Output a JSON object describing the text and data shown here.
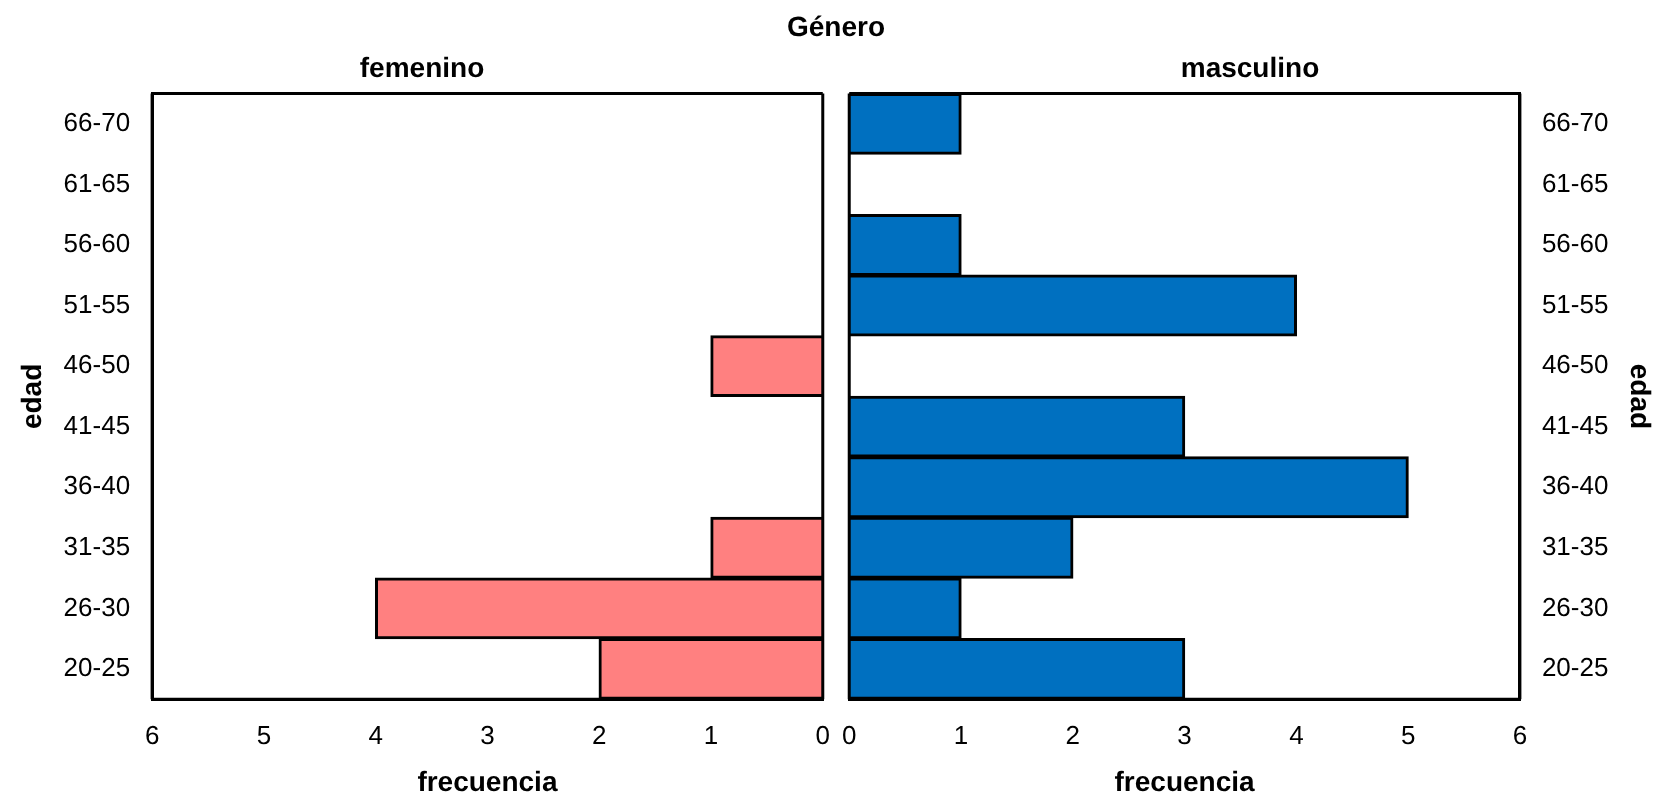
{
  "chart_data": [
    {
      "type": "bar",
      "orientation": "horizontal",
      "title": "femenino",
      "xlabel": "frecuencia",
      "ylabel": "edad",
      "annotations": [
        "Género"
      ],
      "categories": [
        "66-70",
        "61-65",
        "56-60",
        "51-55",
        "46-50",
        "41-45",
        "36-40",
        "31-35",
        "26-30",
        "20-25"
      ],
      "values": [
        0,
        0,
        0,
        0,
        1,
        0,
        0,
        1,
        4,
        2
      ],
      "color": "#ff8080",
      "xlim": [
        6,
        0
      ],
      "xticks": [
        6,
        5,
        4,
        3,
        2,
        1,
        0
      ],
      "grid": false,
      "legend": false
    },
    {
      "type": "bar",
      "orientation": "horizontal",
      "title": "masculino",
      "xlabel": "frecuencia",
      "ylabel": "edad",
      "categories": [
        "66-70",
        "61-65",
        "56-60",
        "51-55",
        "46-50",
        "41-45",
        "36-40",
        "31-35",
        "26-30",
        "20-25"
      ],
      "values": [
        1,
        0,
        1,
        4,
        0,
        3,
        5,
        2,
        1,
        3
      ],
      "color": "#0070c0",
      "xlim": [
        0,
        6
      ],
      "xticks": [
        0,
        1,
        2,
        3,
        4,
        5,
        6
      ],
      "grid": false,
      "legend": false
    }
  ]
}
